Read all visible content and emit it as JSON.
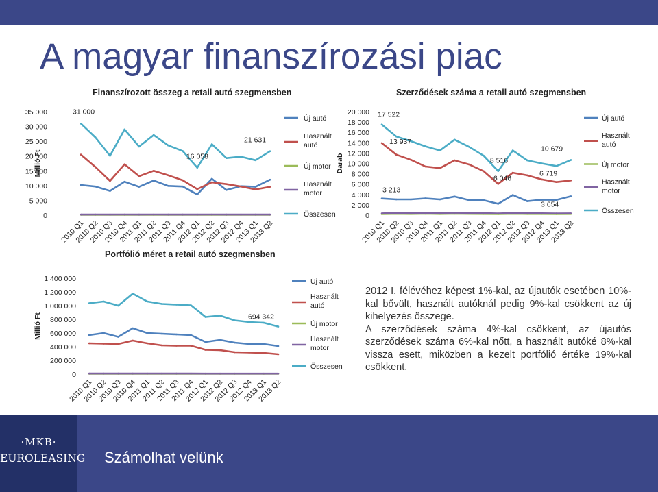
{
  "page": {
    "title": "A magyar finanszírozási piac",
    "footer_slogan": "Számolhat velünk",
    "logo_top": "·MKB·",
    "logo_bottom": "EUROLEASING",
    "paragraph1": "2012 I. félévéhez képest 1%-kal, az újautók esetében 10%-kal bővült, használt autóknál pedig 9%-kal csökkent az új kihelyezés összege.",
    "paragraph2": "A szerződések száma 4%-kal csökkent, az újautós szerződések száma 6%-kal nőtt, a használt autóké 8%-kal vissza esett, miközben a kezelt portfólió értéke 19%-kal csökkent.",
    "colors": {
      "brand": "#3b4788",
      "brand_dark": "#233067"
    }
  },
  "chart_data": [
    {
      "id": "c1",
      "type": "line",
      "title": "Finanszírozott összeg a retail autó szegmensben",
      "ylabel": "Millió Ft",
      "ylim": [
        0,
        35000
      ],
      "yticks": [
        0,
        5000,
        10000,
        15000,
        20000,
        25000,
        30000,
        35000
      ],
      "ytick_labels": [
        "0",
        "5 000",
        "10 000",
        "15 000",
        "20 000",
        "25 000",
        "30 000",
        "35 000"
      ],
      "categories": [
        "2010 Q1",
        "2010 Q2",
        "2010 Q3",
        "2010 Q4",
        "2011 Q1",
        "2011 Q2",
        "2011 Q3",
        "2011 Q4",
        "2012 Q1",
        "2012 Q2",
        "2012 Q3",
        "2012 Q4",
        "2013 Q1",
        "2013 Q2"
      ],
      "grid": false,
      "legend": "right",
      "series": [
        {
          "name": "Új autó",
          "color": "#4f81bd",
          "values": [
            10200,
            9700,
            8200,
            11300,
            9600,
            11700,
            9900,
            9700,
            7000,
            12300,
            8500,
            9800,
            9600,
            12000
          ]
        },
        {
          "name": "Használt autó",
          "color": "#c0504d",
          "values": [
            20500,
            16300,
            11600,
            17200,
            13200,
            15000,
            13500,
            11800,
            8800,
            11100,
            10500,
            9700,
            8700,
            9600
          ]
        },
        {
          "name": "Új motor",
          "color": "#9bbb59",
          "values": [
            150,
            150,
            130,
            140,
            140,
            150,
            140,
            140,
            130,
            150,
            130,
            130,
            130,
            130
          ]
        },
        {
          "name": "Használt motor",
          "color": "#8064a2",
          "values": [
            220,
            230,
            200,
            230,
            220,
            240,
            220,
            220,
            200,
            230,
            210,
            210,
            200,
            210
          ]
        },
        {
          "name": "Összesen",
          "color": "#4bacc6",
          "values": [
            31000,
            26300,
            20100,
            29000,
            23200,
            27100,
            23600,
            21700,
            16058,
            24000,
            19300,
            19800,
            18600,
            21631
          ]
        }
      ],
      "annotations": [
        "31 000",
        "16 058",
        "21 631"
      ]
    },
    {
      "id": "c2",
      "type": "line",
      "title": "Szerződések száma a retail autó szegmensben",
      "ylabel": "Darab",
      "ylim": [
        0,
        20000
      ],
      "yticks": [
        0,
        2000,
        4000,
        6000,
        8000,
        10000,
        12000,
        14000,
        16000,
        18000,
        20000
      ],
      "ytick_labels": [
        "0",
        "2 000",
        "4 000",
        "6 000",
        "8 000",
        "10 000",
        "12 000",
        "14 000",
        "16 000",
        "18 000",
        "20 000"
      ],
      "categories": [
        "2010 Q1",
        "2010 Q2",
        "2010 Q3",
        "2010 Q4",
        "2011 Q1",
        "2011 Q2",
        "2011 Q3",
        "2011 Q4",
        "2012 Q1",
        "2012 Q2",
        "2012 Q3",
        "2012 Q4",
        "2013 Q1",
        "2013 Q2"
      ],
      "grid": false,
      "legend": "right",
      "series": [
        {
          "name": "Új autó",
          "color": "#4f81bd",
          "values": [
            3213,
            3050,
            3050,
            3250,
            3050,
            3600,
            2900,
            2900,
            2200,
            3900,
            2700,
            3000,
            2950,
            3654
          ]
        },
        {
          "name": "Használt autó",
          "color": "#c0504d",
          "values": [
            13937,
            11700,
            10700,
            9400,
            9100,
            10600,
            9800,
            8500,
            6046,
            8200,
            7700,
            6900,
            6400,
            6719
          ]
        },
        {
          "name": "Új motor",
          "color": "#9bbb59",
          "values": [
            200,
            250,
            220,
            260,
            230,
            280,
            240,
            230,
            200,
            250,
            230,
            220,
            210,
            220
          ]
        },
        {
          "name": "Használt motor",
          "color": "#8064a2",
          "values": [
            350,
            420,
            380,
            430,
            390,
            470,
            400,
            380,
            320,
            420,
            380,
            360,
            330,
            340
          ]
        },
        {
          "name": "Összesen",
          "color": "#4bacc6",
          "values": [
            17522,
            15200,
            14300,
            13300,
            12500,
            14600,
            13200,
            11500,
            8516,
            12500,
            10600,
            10000,
            9500,
            10679
          ]
        }
      ],
      "annotations": [
        "17 522",
        "13 937",
        "3 213",
        "8 516",
        "6 046",
        "10 679",
        "6 719",
        "3 654"
      ]
    },
    {
      "id": "c3",
      "type": "line",
      "title": "Portfólió méret a retail autó szegmensben",
      "ylabel": "Millió Ft",
      "ylim": [
        0,
        1400000
      ],
      "yticks": [
        0,
        200000,
        400000,
        600000,
        800000,
        1000000,
        1200000,
        1400000
      ],
      "ytick_labels": [
        "0",
        "200 000",
        "400 000",
        "600 000",
        "800 000",
        "1 000 000",
        "1 200 000",
        "1 400 000"
      ],
      "categories": [
        "2010 Q1",
        "2010 Q2",
        "2010 Q3",
        "2010 Q4",
        "2011 Q1",
        "2011 Q2",
        "2011 Q3",
        "2011 Q4",
        "2012 Q1",
        "2012 Q2",
        "2012 Q3",
        "2012 Q4",
        "2013 Q1",
        "2013 Q2"
      ],
      "grid": false,
      "legend": "right",
      "series": [
        {
          "name": "Új autó",
          "color": "#4f81bd",
          "values": [
            570000,
            600000,
            545000,
            670000,
            600000,
            590000,
            580000,
            570000,
            470000,
            500000,
            460000,
            440000,
            440000,
            410000
          ]
        },
        {
          "name": "Használt autó",
          "color": "#c0504d",
          "values": [
            450000,
            445000,
            440000,
            490000,
            450000,
            420000,
            415000,
            415000,
            355000,
            350000,
            320000,
            315000,
            310000,
            290000
          ]
        },
        {
          "name": "Új motor",
          "color": "#9bbb59",
          "values": [
            6000,
            6000,
            6000,
            6000,
            6000,
            6000,
            6000,
            6000,
            5000,
            5000,
            5000,
            5000,
            5000,
            5000
          ]
        },
        {
          "name": "Használt motor",
          "color": "#8064a2",
          "values": [
            9000,
            9000,
            9000,
            9000,
            9000,
            9000,
            9000,
            9000,
            8000,
            8000,
            8000,
            8000,
            8000,
            8000
          ]
        },
        {
          "name": "Összesen",
          "color": "#4bacc6",
          "values": [
            1035000,
            1060000,
            1000000,
            1175000,
            1060000,
            1025000,
            1015000,
            1005000,
            835000,
            855000,
            785000,
            760000,
            750000,
            694342
          ]
        }
      ],
      "annotations": [
        "694 342"
      ]
    }
  ]
}
